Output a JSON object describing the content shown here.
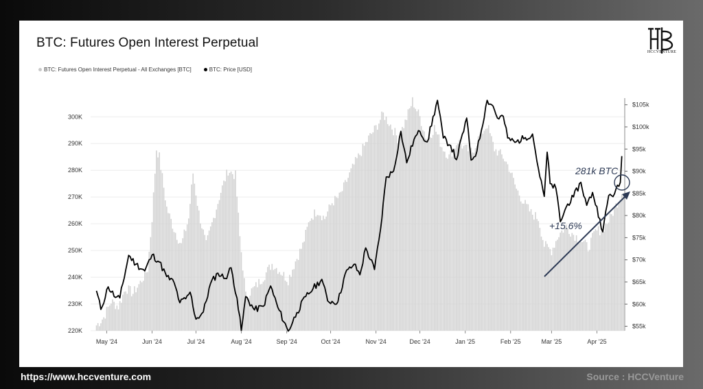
{
  "header": {
    "title": "BTC: Futures Open Interest Perpetual"
  },
  "legend": {
    "oi_label": "BTC: Futures Open Interest Perpetual - All Exchanges [BTC]",
    "price_label": "BTC: Price [USD]"
  },
  "logo": {
    "text": "HCCVENTURE",
    "icon": "hcc-monogram-logo"
  },
  "footer": {
    "url": "https://www.hccventure.com",
    "source": "Source : HCCVenture"
  },
  "colors": {
    "oi_bars": "#d2d2d2",
    "price_line": "#000000",
    "annotation": "#2d3a55"
  },
  "chart_data": {
    "type": "bar",
    "title": "BTC: Futures Open Interest Perpetual",
    "x_tick_labels": [
      "May '24",
      "Jun '24",
      "Jul '24",
      "Aug '24",
      "Sep '24",
      "Oct '24",
      "Nov '24",
      "Dec '24",
      "Jan '25",
      "Feb '25",
      "Mar '25",
      "Apr '25"
    ],
    "left_axis": {
      "ticks": [
        "220K",
        "230K",
        "240K",
        "250K",
        "260K",
        "270K",
        "280K",
        "290K",
        "300K"
      ],
      "ylim": [
        220000,
        307000
      ]
    },
    "right_axis": {
      "ticks": [
        "$55k",
        "$60k",
        "$65k",
        "$70k",
        "$75k",
        "$80k",
        "$85k",
        "$90k",
        "$95k",
        "$100k",
        "$105k"
      ],
      "ylim": [
        54000,
        106500
      ]
    },
    "grid": true,
    "legend_placement": "top-left",
    "annotations": [
      {
        "text": "281k BTC",
        "type": "circle-callout"
      },
      {
        "text": "+15.6%",
        "type": "trend-arrow"
      }
    ],
    "series": [
      {
        "name": "BTC: Futures Open Interest Perpetual - All Exchanges [BTC]",
        "kind": "bar",
        "axis": "left",
        "points": [
          [
            "2024-04-28",
            222000
          ],
          [
            "2024-05-03",
            225000
          ],
          [
            "2024-05-08",
            231000
          ],
          [
            "2024-05-13",
            229000
          ],
          [
            "2024-05-18",
            236000
          ],
          [
            "2024-05-23",
            234000
          ],
          [
            "2024-05-28",
            238000
          ],
          [
            "2024-06-02",
            243000
          ],
          [
            "2024-06-05",
            262000
          ],
          [
            "2024-06-08",
            288000
          ],
          [
            "2024-06-10",
            285000
          ],
          [
            "2024-06-15",
            266000
          ],
          [
            "2024-06-20",
            258000
          ],
          [
            "2024-06-25",
            252000
          ],
          [
            "2024-06-30",
            262000
          ],
          [
            "2024-07-03",
            279000
          ],
          [
            "2024-07-07",
            264000
          ],
          [
            "2024-07-12",
            252000
          ],
          [
            "2024-07-17",
            262000
          ],
          [
            "2024-07-22",
            272000
          ],
          [
            "2024-07-27",
            280000
          ],
          [
            "2024-08-01",
            278000
          ],
          [
            "2024-08-04",
            255000
          ],
          [
            "2024-08-08",
            233000
          ],
          [
            "2024-08-14",
            236000
          ],
          [
            "2024-08-20",
            240000
          ],
          [
            "2024-08-26",
            245000
          ],
          [
            "2024-09-01",
            242000
          ],
          [
            "2024-09-06",
            239000
          ],
          [
            "2024-09-11",
            246000
          ],
          [
            "2024-09-16",
            252000
          ],
          [
            "2024-09-21",
            262000
          ],
          [
            "2024-09-26",
            265000
          ],
          [
            "2024-10-01",
            262000
          ],
          [
            "2024-10-06",
            268000
          ],
          [
            "2024-10-11",
            270000
          ],
          [
            "2024-10-16",
            276000
          ],
          [
            "2024-10-21",
            282000
          ],
          [
            "2024-10-26",
            287000
          ],
          [
            "2024-10-31",
            292000
          ],
          [
            "2024-11-05",
            296000
          ],
          [
            "2024-11-10",
            301000
          ],
          [
            "2024-11-15",
            297000
          ],
          [
            "2024-11-20",
            292000
          ],
          [
            "2024-11-25",
            298000
          ],
          [
            "2024-11-30",
            306000
          ],
          [
            "2024-12-05",
            300000
          ],
          [
            "2024-12-10",
            291000
          ],
          [
            "2024-12-15",
            296000
          ],
          [
            "2024-12-20",
            289000
          ],
          [
            "2024-12-25",
            285000
          ],
          [
            "2024-12-31",
            291000
          ],
          [
            "2025-01-05",
            288000
          ],
          [
            "2025-01-10",
            287000
          ],
          [
            "2025-01-15",
            293000
          ],
          [
            "2025-01-20",
            297000
          ],
          [
            "2025-01-25",
            288000
          ],
          [
            "2025-01-31",
            285000
          ],
          [
            "2025-02-04",
            281000
          ],
          [
            "2025-02-09",
            273000
          ],
          [
            "2025-02-14",
            268000
          ],
          [
            "2025-02-19",
            264000
          ],
          [
            "2025-02-24",
            262000
          ],
          [
            "2025-02-28",
            252000
          ],
          [
            "2025-03-05",
            250000
          ],
          [
            "2025-03-10",
            256000
          ],
          [
            "2025-03-15",
            259000
          ],
          [
            "2025-03-20",
            256000
          ],
          [
            "2025-03-25",
            254000
          ],
          [
            "2025-03-30",
            251000
          ],
          [
            "2025-04-04",
            257000
          ],
          [
            "2025-04-09",
            258000
          ],
          [
            "2025-04-14",
            262000
          ],
          [
            "2025-04-19",
            268000
          ],
          [
            "2025-04-23",
            273000
          ]
        ]
      },
      {
        "name": "BTC: Price [USD]",
        "kind": "line",
        "axis": "right",
        "points": [
          [
            "2024-04-28",
            63000
          ],
          [
            "2024-05-01",
            58800
          ],
          [
            "2024-05-06",
            63900
          ],
          [
            "2024-05-11",
            61500
          ],
          [
            "2024-05-14",
            61400
          ],
          [
            "2024-05-20",
            71000
          ],
          [
            "2024-05-25",
            69000
          ],
          [
            "2024-05-31",
            67500
          ],
          [
            "2024-06-05",
            71100
          ],
          [
            "2024-06-10",
            69500
          ],
          [
            "2024-06-15",
            66200
          ],
          [
            "2024-06-20",
            64900
          ],
          [
            "2024-06-24",
            60300
          ],
          [
            "2024-06-28",
            61200
          ],
          [
            "2024-07-01",
            62700
          ],
          [
            "2024-07-05",
            56600
          ],
          [
            "2024-07-10",
            58200
          ],
          [
            "2024-07-15",
            64700
          ],
          [
            "2024-07-20",
            67000
          ],
          [
            "2024-07-25",
            65800
          ],
          [
            "2024-07-29",
            68200
          ],
          [
            "2024-08-02",
            61400
          ],
          [
            "2024-08-05",
            54000
          ],
          [
            "2024-08-08",
            61700
          ],
          [
            "2024-08-14",
            58700
          ],
          [
            "2024-08-20",
            59500
          ],
          [
            "2024-08-25",
            64100
          ],
          [
            "2024-08-30",
            59200
          ],
          [
            "2024-09-06",
            53900
          ],
          [
            "2024-09-12",
            58100
          ],
          [
            "2024-09-18",
            61700
          ],
          [
            "2024-09-23",
            63500
          ],
          [
            "2024-09-29",
            65600
          ],
          [
            "2024-10-03",
            60700
          ],
          [
            "2024-10-10",
            60500
          ],
          [
            "2024-10-15",
            66900
          ],
          [
            "2024-10-21",
            69000
          ],
          [
            "2024-10-25",
            66600
          ],
          [
            "2024-10-29",
            72700
          ],
          [
            "2024-11-04",
            67800
          ],
          [
            "2024-11-08",
            76600
          ],
          [
            "2024-11-12",
            88700
          ],
          [
            "2024-11-17",
            90000
          ],
          [
            "2024-11-22",
            99000
          ],
          [
            "2024-11-26",
            91900
          ],
          [
            "2024-12-01",
            97200
          ],
          [
            "2024-12-05",
            99000
          ],
          [
            "2024-12-10",
            96600
          ],
          [
            "2024-12-17",
            106000
          ],
          [
            "2024-12-21",
            97500
          ],
          [
            "2024-12-26",
            95800
          ],
          [
            "2024-12-30",
            92600
          ],
          [
            "2025-01-06",
            102000
          ],
          [
            "2025-01-09",
            92500
          ],
          [
            "2025-01-13",
            94500
          ],
          [
            "2025-01-20",
            106000
          ],
          [
            "2025-01-24",
            104700
          ],
          [
            "2025-01-27",
            102000
          ],
          [
            "2025-01-31",
            102400
          ],
          [
            "2025-02-03",
            97500
          ],
          [
            "2025-02-08",
            96500
          ],
          [
            "2025-02-15",
            97600
          ],
          [
            "2025-02-20",
            98400
          ],
          [
            "2025-02-25",
            88700
          ],
          [
            "2025-02-28",
            84300
          ],
          [
            "2025-03-02",
            94300
          ],
          [
            "2025-03-04",
            87200
          ],
          [
            "2025-03-08",
            86100
          ],
          [
            "2025-03-11",
            78600
          ],
          [
            "2025-03-16",
            82600
          ],
          [
            "2025-03-20",
            84200
          ],
          [
            "2025-03-25",
            87500
          ],
          [
            "2025-03-29",
            82300
          ],
          [
            "2025-04-02",
            85200
          ],
          [
            "2025-04-07",
            79200
          ],
          [
            "2025-04-09",
            76300
          ],
          [
            "2025-04-13",
            84500
          ],
          [
            "2025-04-17",
            84900
          ],
          [
            "2025-04-21",
            87500
          ],
          [
            "2025-04-22",
            93400
          ]
        ]
      }
    ]
  }
}
